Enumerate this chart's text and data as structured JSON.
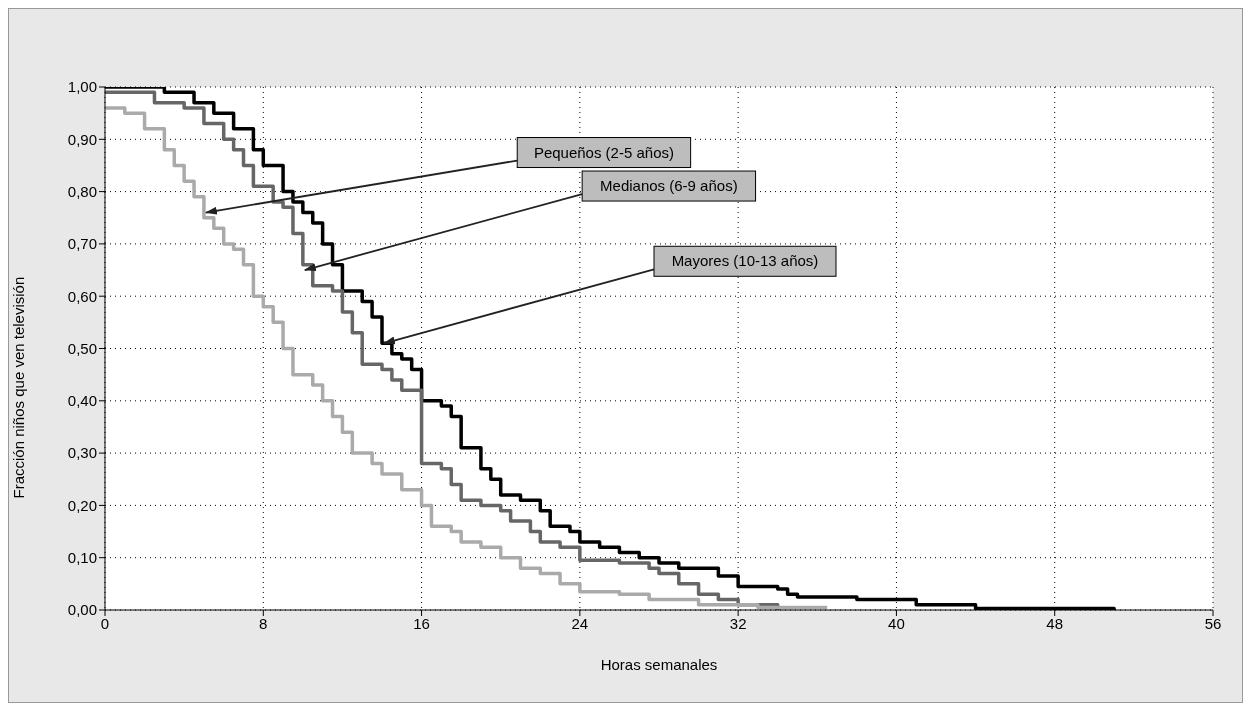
{
  "chart_data": {
    "type": "step",
    "xlabel": "Horas semanales",
    "ylabel": "Fracción niños que ven televisión",
    "xlim": [
      0,
      56
    ],
    "xticks": [
      0,
      8,
      16,
      24,
      32,
      40,
      48,
      56
    ],
    "ylim": [
      0,
      1
    ],
    "yticks": [
      {
        "value": 0,
        "label": "0,00"
      },
      {
        "value": 0.1,
        "label": "0,10"
      },
      {
        "value": 0.2,
        "label": "0,20"
      },
      {
        "value": 0.3,
        "label": "0,30"
      },
      {
        "value": 0.4,
        "label": "0,40"
      },
      {
        "value": 0.5,
        "label": "0,50"
      },
      {
        "value": 0.6,
        "label": "0,60"
      },
      {
        "value": 0.7,
        "label": "0,70"
      },
      {
        "value": 0.8,
        "label": "0,80"
      },
      {
        "value": 0.9,
        "label": "0,90"
      },
      {
        "value": 1,
        "label": "1,00"
      }
    ],
    "grid": true,
    "legend": false,
    "marker": "none",
    "line_style": "solid",
    "series": [
      {
        "color": "#000000",
        "x": [
          0,
          3,
          4.5,
          5.5,
          6.5,
          7.5,
          8,
          9,
          9.5,
          10,
          10.5,
          11,
          11.5,
          12,
          13,
          13.5,
          14,
          14.5,
          15,
          15.5,
          16,
          17,
          17.5,
          18,
          19,
          19.5,
          20,
          21,
          22,
          22.5,
          23.5,
          24,
          25,
          26,
          27,
          28,
          29,
          31,
          32,
          34,
          34.5,
          35,
          38,
          41,
          44,
          50,
          51
        ],
        "values": [
          1,
          0.99,
          0.97,
          0.95,
          0.92,
          0.88,
          0.85,
          0.8,
          0.78,
          0.76,
          0.74,
          0.7,
          0.66,
          0.61,
          0.59,
          0.56,
          0.51,
          0.49,
          0.48,
          0.46,
          0.4,
          0.39,
          0.37,
          0.31,
          0.27,
          0.25,
          0.22,
          0.21,
          0.19,
          0.16,
          0.15,
          0.13,
          0.12,
          0.11,
          0.1,
          0.09,
          0.08,
          0.065,
          0.045,
          0.04,
          0.03,
          0.025,
          0.02,
          0.01,
          0.003,
          0.003,
          0
        ]
      },
      {
        "color": "#666666",
        "x": [
          0,
          2.5,
          4,
          5,
          6,
          6.5,
          7,
          7.5,
          8.5,
          9,
          9.5,
          10,
          10.5,
          11.5,
          12,
          12.5,
          13,
          14,
          14.5,
          15,
          16,
          17,
          17.5,
          18,
          19,
          20,
          20.5,
          21.5,
          22,
          23,
          24,
          26,
          27.5,
          28,
          29,
          30,
          31,
          32,
          34
        ],
        "values": [
          0.99,
          0.97,
          0.96,
          0.93,
          0.9,
          0.88,
          0.85,
          0.81,
          0.78,
          0.77,
          0.72,
          0.66,
          0.62,
          0.61,
          0.57,
          0.53,
          0.47,
          0.46,
          0.44,
          0.42,
          0.28,
          0.27,
          0.24,
          0.21,
          0.2,
          0.19,
          0.17,
          0.15,
          0.13,
          0.12,
          0.095,
          0.09,
          0.08,
          0.07,
          0.05,
          0.03,
          0.02,
          0.01,
          0
        ]
      },
      {
        "color": "#aaaaaa",
        "x": [
          0,
          1,
          2,
          3,
          3.5,
          4,
          4.5,
          5,
          5.5,
          6,
          6.5,
          7,
          7.5,
          8,
          8.5,
          9,
          9.5,
          10.5,
          11,
          11.5,
          12,
          12.5,
          13.5,
          14,
          15,
          16,
          16.5,
          17.5,
          18,
          19,
          20,
          21,
          22,
          23,
          24,
          26,
          27.5,
          30,
          33,
          36.5
        ],
        "values": [
          0.96,
          0.95,
          0.92,
          0.88,
          0.85,
          0.82,
          0.79,
          0.75,
          0.73,
          0.7,
          0.69,
          0.66,
          0.6,
          0.58,
          0.55,
          0.5,
          0.45,
          0.43,
          0.4,
          0.37,
          0.34,
          0.3,
          0.28,
          0.26,
          0.23,
          0.2,
          0.16,
          0.15,
          0.13,
          0.12,
          0.1,
          0.08,
          0.07,
          0.05,
          0.035,
          0.03,
          0.02,
          0.01,
          0.005,
          0.005
        ]
      }
    ],
    "annotations": [
      {
        "text": "Pequeños (2-5 años)",
        "x": 5,
        "y": 0.76
      },
      {
        "text": "Medianos (6-9 años)",
        "x": 10,
        "y": 0.65
      },
      {
        "text": "Mayores (10-13 años)",
        "x": 14,
        "y": 0.51
      }
    ]
  }
}
